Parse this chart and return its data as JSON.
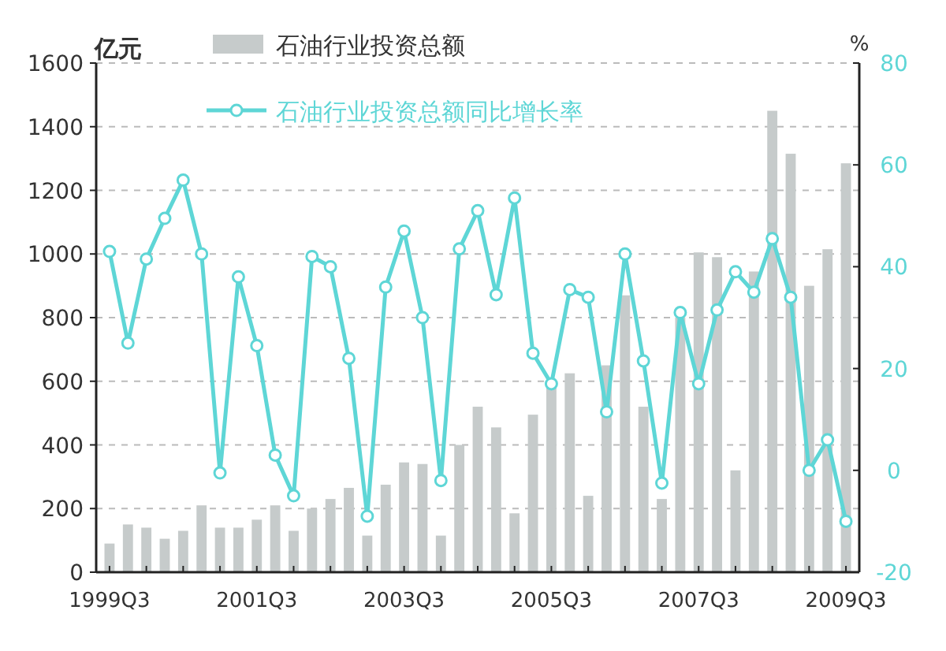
{
  "chart_data": {
    "type": "bar",
    "ylabel": "亿元",
    "y2label": "%",
    "categories": [
      "1999Q3",
      null,
      null,
      null,
      null,
      null,
      null,
      null,
      "2001Q3",
      null,
      null,
      null,
      null,
      null,
      null,
      null,
      "2003Q3",
      null,
      null,
      null,
      null,
      null,
      null,
      null,
      "2005Q3",
      null,
      null,
      null,
      null,
      null,
      null,
      null,
      "2007Q3",
      null,
      null,
      null,
      null,
      null,
      null,
      null,
      "2009Q3"
    ],
    "series": [
      {
        "name": "石油行业投资总额",
        "color": "#c6cbcb",
        "values": [
          90,
          150,
          140,
          105,
          130,
          210,
          140,
          140,
          165,
          210,
          130,
          200,
          230,
          265,
          115,
          275,
          345,
          340,
          115,
          400,
          520,
          455,
          185,
          495,
          590,
          625,
          240,
          650,
          870,
          520,
          230,
          800,
          1005,
          990,
          320,
          945,
          1450,
          1315,
          900,
          1015,
          1285
        ]
      },
      {
        "name": "石油行业投资总额同比增长率",
        "type": "line",
        "axis": "y2",
        "color": "#5ed6d6",
        "values": [
          43,
          25,
          41.5,
          49.5,
          57,
          42.5,
          -0.5,
          38,
          24.5,
          3,
          -5,
          42,
          40,
          22,
          -9,
          36,
          47,
          30,
          -2,
          43.5,
          51,
          34.5,
          53.5,
          23,
          17,
          35.5,
          34,
          11.5,
          42.5,
          21.5,
          -2.5,
          31,
          17,
          31.5,
          39,
          35,
          45.5,
          34,
          0,
          6,
          -10
        ]
      }
    ],
    "ylim": [
      0,
      1600
    ],
    "yticks": [
      0,
      200,
      400,
      600,
      800,
      1000,
      1200,
      1400,
      1600
    ],
    "y2lim": [
      -20,
      80
    ],
    "y2ticks": [
      -20,
      0,
      20,
      40,
      60,
      80
    ],
    "grid": "y",
    "legend": "top",
    "marker": "circle",
    "line_style": "solid"
  }
}
